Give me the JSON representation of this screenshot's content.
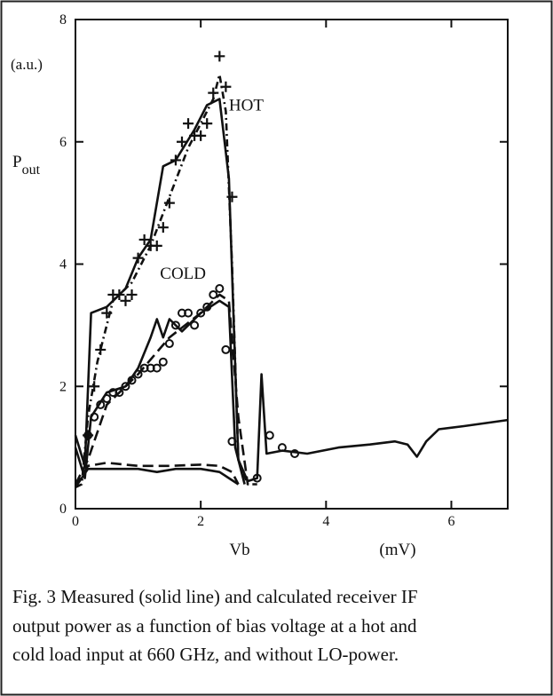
{
  "chart_data": {
    "type": "line",
    "y_unit": "(a.u.)",
    "y_label": {
      "text": "P",
      "subscript": "out"
    },
    "x_label": "Vb",
    "x_unit": "(mV)",
    "annotations": [
      {
        "text": "HOT",
        "x": 2.45,
        "y": 6.6
      },
      {
        "text": "COLD",
        "x": 1.35,
        "y": 3.85
      }
    ],
    "xlim": [
      0,
      6.9
    ],
    "xticks": [
      0,
      2,
      4,
      6
    ],
    "ylim": [
      0,
      8
    ],
    "yticks": [
      0,
      2,
      4,
      6,
      8
    ],
    "series": [
      {
        "color": "#111",
        "style": "solid",
        "x": [
          0,
          0.15,
          0.25,
          0.5,
          0.8,
          1.0,
          1.2,
          1.4,
          1.6,
          1.9,
          2.1,
          2.3,
          2.45,
          2.6,
          2.75,
          2.9,
          2.97,
          3.05,
          3.3,
          3.7,
          4.2,
          4.7,
          5.1,
          5.3,
          5.45,
          5.6,
          5.8,
          6.2,
          6.9
        ],
        "values": [
          1.2,
          0.7,
          3.2,
          3.3,
          3.6,
          4.1,
          4.4,
          5.6,
          5.7,
          6.2,
          6.6,
          6.7,
          5.4,
          0.8,
          0.45,
          0.5,
          2.2,
          0.9,
          0.95,
          0.9,
          1.0,
          1.05,
          1.1,
          1.05,
          0.85,
          1.1,
          1.3,
          1.35,
          1.45
        ]
      },
      {
        "color": "#111",
        "style": "dashdot",
        "x": [
          0,
          0.1,
          0.2,
          0.35,
          0.6,
          0.9,
          1.2,
          1.5,
          1.8,
          2.0,
          2.2,
          2.3,
          2.4,
          2.5,
          2.6,
          2.75,
          2.9
        ],
        "values": [
          0.35,
          0.4,
          1.5,
          2.4,
          3.4,
          3.7,
          4.3,
          5.1,
          5.9,
          6.3,
          6.7,
          7.1,
          6.5,
          4.0,
          0.8,
          0.4,
          0.4
        ]
      },
      {
        "color": "#111",
        "style": "none",
        "marker": "plus",
        "x": [
          0.2,
          0.3,
          0.4,
          0.5,
          0.6,
          0.7,
          0.8,
          0.9,
          1.0,
          1.1,
          1.2,
          1.3,
          1.4,
          1.5,
          1.6,
          1.7,
          1.8,
          1.9,
          2.0,
          2.1,
          2.2,
          2.3,
          2.4,
          2.5
        ],
        "values": [
          1.2,
          2.0,
          2.6,
          3.2,
          3.5,
          3.5,
          3.4,
          3.5,
          4.1,
          4.4,
          4.3,
          4.3,
          4.6,
          5.0,
          5.7,
          6.0,
          6.3,
          6.1,
          6.1,
          6.3,
          6.8,
          7.4,
          6.9,
          5.1
        ]
      },
      {
        "color": "#111",
        "style": "solid",
        "x": [
          0,
          0.15,
          0.25,
          0.5,
          0.8,
          1.0,
          1.2,
          1.3,
          1.4,
          1.5,
          1.7,
          2.0,
          2.3,
          2.45,
          2.55,
          2.7
        ],
        "values": [
          1.0,
          0.5,
          1.5,
          1.9,
          2.0,
          2.3,
          2.8,
          3.1,
          2.8,
          3.1,
          2.9,
          3.2,
          3.4,
          3.3,
          1.0,
          0.4
        ]
      },
      {
        "color": "#111",
        "style": "dashed",
        "x": [
          0,
          0.2,
          0.5,
          1.0,
          1.5,
          2.0,
          2.3,
          2.45,
          2.6,
          2.75
        ],
        "values": [
          0.4,
          0.8,
          1.7,
          2.2,
          2.8,
          3.2,
          3.5,
          3.4,
          1.5,
          0.4
        ]
      },
      {
        "color": "#111",
        "style": "none",
        "marker": "circle",
        "x": [
          0.2,
          0.3,
          0.4,
          0.5,
          0.6,
          0.7,
          0.8,
          0.9,
          1.0,
          1.1,
          1.2,
          1.3,
          1.4,
          1.5,
          1.6,
          1.7,
          1.8,
          1.9,
          2.0,
          2.1,
          2.2,
          2.3,
          2.4,
          2.5,
          2.9,
          3.1,
          3.3,
          3.5
        ],
        "values": [
          1.2,
          1.5,
          1.7,
          1.8,
          1.9,
          1.9,
          2.0,
          2.1,
          2.2,
          2.3,
          2.3,
          2.3,
          2.4,
          2.7,
          3.0,
          3.2,
          3.2,
          3.0,
          3.2,
          3.3,
          3.5,
          3.6,
          2.6,
          1.1,
          0.5,
          1.2,
          1.0,
          0.9
        ]
      },
      {
        "color": "#111",
        "style": "solid",
        "x": [
          0,
          0.2,
          0.5,
          1.0,
          1.3,
          1.6,
          2.0,
          2.3,
          2.45,
          2.6
        ],
        "values": [
          0.35,
          0.65,
          0.65,
          0.65,
          0.6,
          0.65,
          0.65,
          0.6,
          0.5,
          0.4
        ]
      },
      {
        "color": "#111",
        "style": "dashed",
        "x": [
          0,
          0.2,
          0.5,
          1.0,
          1.5,
          2.0,
          2.3,
          2.5,
          2.6
        ],
        "values": [
          0.35,
          0.7,
          0.75,
          0.7,
          0.7,
          0.72,
          0.7,
          0.6,
          0.4
        ]
      }
    ]
  },
  "caption": [
    "Fig. 3 Measured (solid line) and calculated receiver IF",
    "output power as a function of bias voltage at a hot and",
    "cold load input at 660 GHz, and without LO-power."
  ]
}
